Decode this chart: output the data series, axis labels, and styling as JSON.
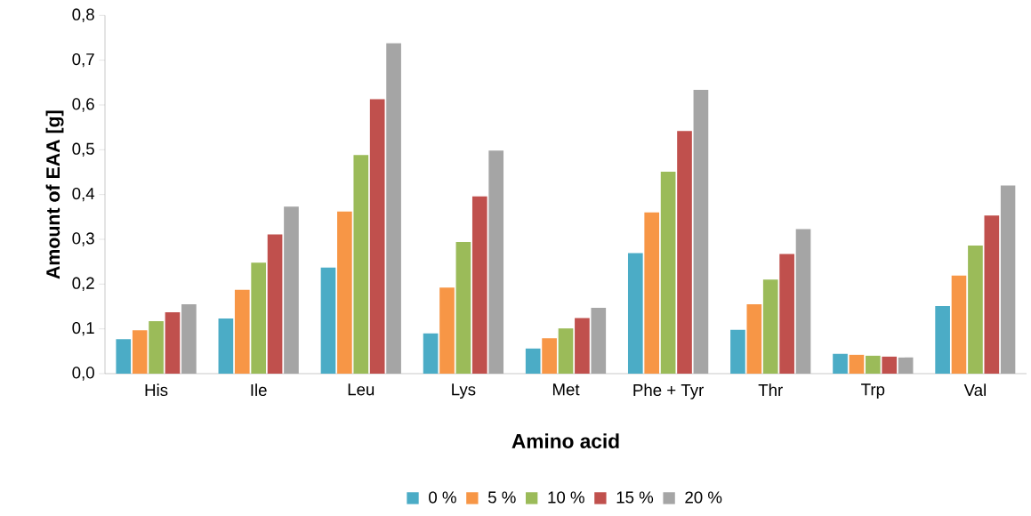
{
  "chart_data": {
    "type": "bar",
    "xlabel": "Amino acid",
    "ylabel": "Amount of EAA [g]",
    "categories": [
      "His",
      "Ile",
      "Leu",
      "Lys",
      "Met",
      "Phe + Tyr",
      "Thr",
      "Trp",
      "Val"
    ],
    "series": [
      {
        "name": "0 %",
        "color": "#4bacc6",
        "values": [
          0.077,
          0.123,
          0.237,
          0.09,
          0.056,
          0.269,
          0.098,
          0.044,
          0.151
        ]
      },
      {
        "name": "5 %",
        "color": "#f79646",
        "values": [
          0.097,
          0.187,
          0.362,
          0.192,
          0.079,
          0.36,
          0.155,
          0.042,
          0.219
        ]
      },
      {
        "name": "10 %",
        "color": "#9bbb59",
        "values": [
          0.117,
          0.248,
          0.488,
          0.294,
          0.101,
          0.451,
          0.21,
          0.04,
          0.286
        ]
      },
      {
        "name": "15 %",
        "color": "#c0504d",
        "values": [
          0.137,
          0.311,
          0.613,
          0.396,
          0.124,
          0.542,
          0.267,
          0.038,
          0.353
        ]
      },
      {
        "name": "20 %",
        "color": "#a5a5a5",
        "values": [
          0.155,
          0.373,
          0.738,
          0.498,
          0.147,
          0.634,
          0.323,
          0.036,
          0.42
        ]
      }
    ],
    "ylim": [
      0,
      0.8
    ],
    "yticks": [
      {
        "value": 0,
        "label": "0,0"
      },
      {
        "value": 0.1,
        "label": "0,1"
      },
      {
        "value": 0.2,
        "label": "0,2"
      },
      {
        "value": 0.3,
        "label": "0,3"
      },
      {
        "value": 0.4,
        "label": "0,4"
      },
      {
        "value": 0.5,
        "label": "0,5"
      },
      {
        "value": 0.6,
        "label": "0,6"
      },
      {
        "value": 0.7,
        "label": "0,7"
      },
      {
        "value": 0.8,
        "label": "0,8"
      }
    ],
    "grid": false,
    "legend": "bottom"
  }
}
